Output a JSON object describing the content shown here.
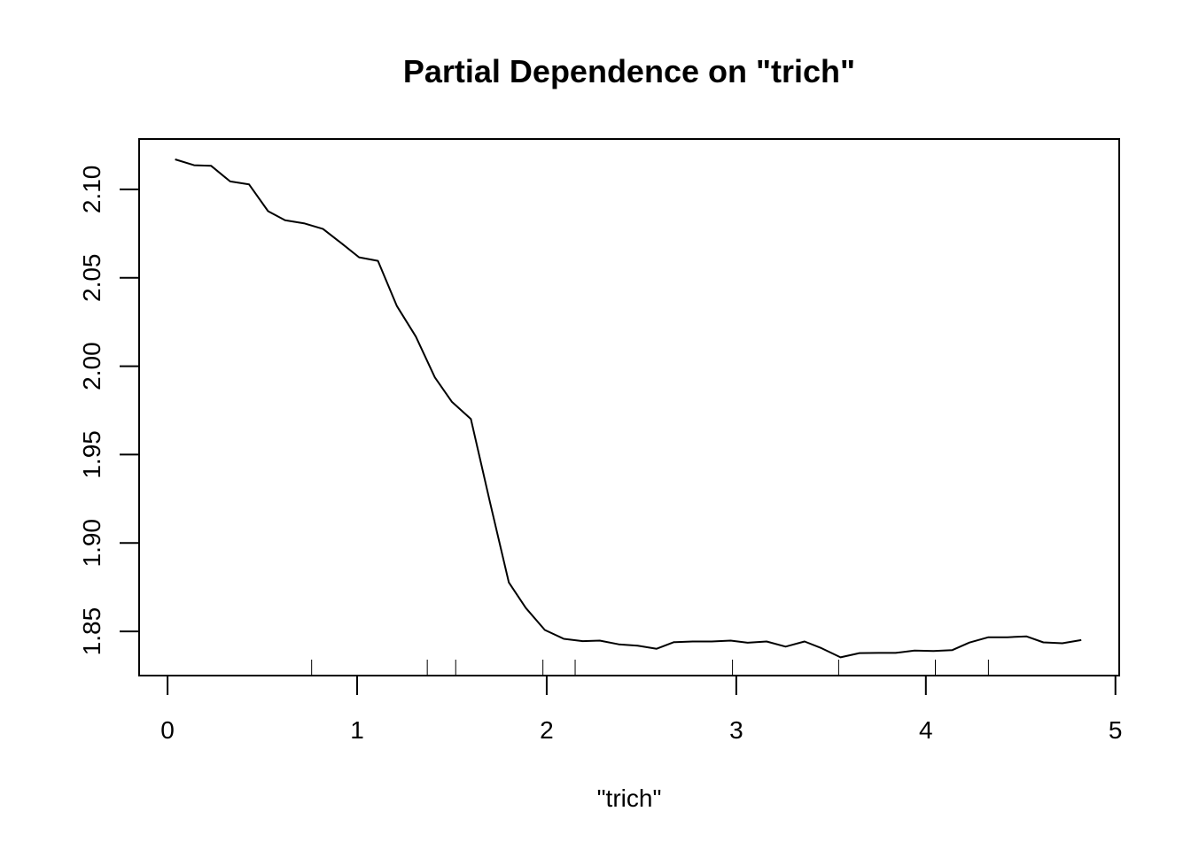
{
  "chart_data": {
    "type": "line",
    "title": "Partial Dependence on \"trich\"",
    "xlabel": "\"trich\"",
    "ylabel": "",
    "xlim": [
      -0.15,
      5.02
    ],
    "ylim": [
      1.825,
      2.1285
    ],
    "x_ticks": [
      0,
      1,
      2,
      3,
      4,
      5
    ],
    "x_tick_labels": [
      "0",
      "1",
      "2",
      "3",
      "4",
      "5"
    ],
    "y_ticks": [
      1.85,
      1.9,
      1.95,
      2.0,
      2.05,
      2.1
    ],
    "y_tick_labels": [
      "1.85",
      "1.90",
      "1.95",
      "2.00",
      "2.05",
      "2.10"
    ],
    "grid": false,
    "legend": "none",
    "line_color": "#000000",
    "series": [
      {
        "x": [
          0.04,
          0.14,
          0.23,
          0.33,
          0.43,
          0.53,
          0.62,
          0.72,
          0.82,
          0.92,
          1.01,
          1.11,
          1.21,
          1.31,
          1.41,
          1.5,
          1.6,
          1.7,
          1.8,
          1.89,
          1.99,
          2.09,
          2.19,
          2.28,
          2.38,
          2.48,
          2.58,
          2.67,
          2.77,
          2.87,
          2.97,
          3.06,
          3.16,
          3.26,
          3.36,
          3.45,
          3.55,
          3.65,
          3.75,
          3.84,
          3.94,
          4.04,
          4.14,
          4.23,
          4.33,
          4.43,
          4.53,
          4.62,
          4.72,
          4.82
        ],
        "values": [
          2.117,
          2.1137,
          2.1133,
          2.1045,
          2.1028,
          2.0877,
          2.0825,
          2.0808,
          2.0776,
          2.0693,
          2.0616,
          2.0596,
          2.034,
          2.0167,
          1.9937,
          1.9798,
          1.9701,
          1.9233,
          1.8777,
          1.8632,
          1.8508,
          1.8458,
          1.8445,
          1.8448,
          1.8427,
          1.8419,
          1.8402,
          1.8439,
          1.8443,
          1.8443,
          1.8448,
          1.8436,
          1.8443,
          1.8414,
          1.8443,
          1.8405,
          1.8353,
          1.8377,
          1.8378,
          1.8378,
          1.8391,
          1.8389,
          1.8394,
          1.8437,
          1.8467,
          1.8467,
          1.8472,
          1.8438,
          1.8433,
          1.8451
        ]
      }
    ],
    "rug": [
      0.76,
      1.37,
      1.52,
      1.98,
      2.15,
      2.98,
      3.54,
      4.05,
      4.33
    ]
  }
}
